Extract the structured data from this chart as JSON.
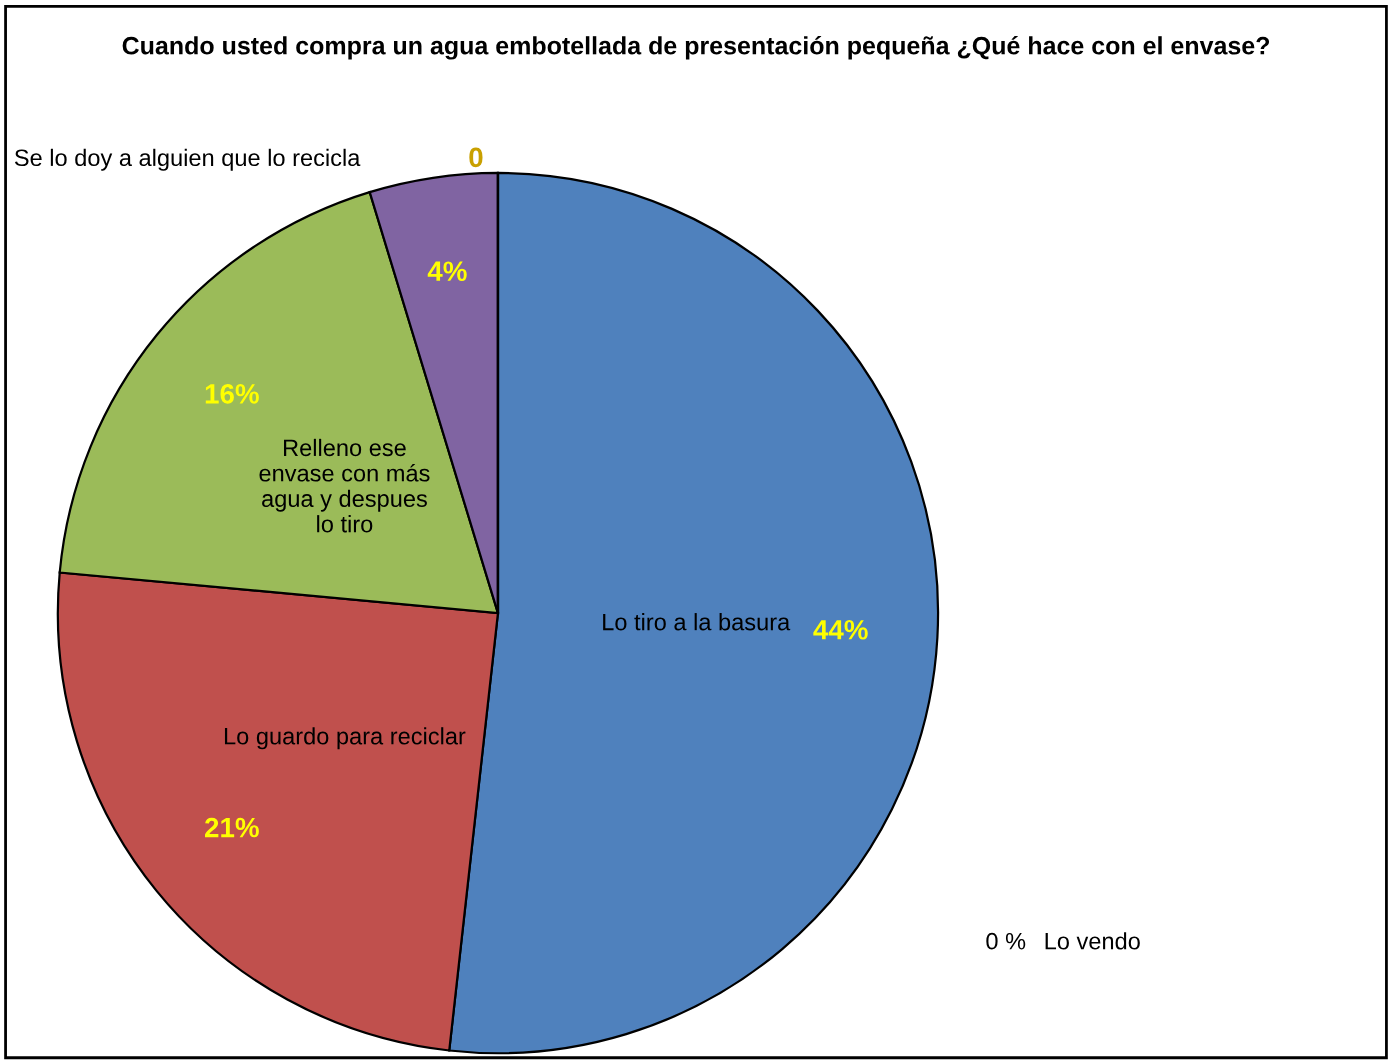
{
  "chart_data": {
    "type": "pie",
    "title": "Cuando usted compra un agua embotellada de presentación pequeña ¿Qué hace con el envase?",
    "categories": [
      "Lo tiro a la basura",
      "Lo guardo para reciclar",
      "Relleno ese\nenvase con más\nagua y despues\nlo tiro",
      null,
      "Se lo doy a alguien que lo recicla",
      "Lo vendo"
    ],
    "values": [
      44,
      21,
      16,
      4,
      0,
      0
    ],
    "value_labels": [
      "44%",
      "21%",
      "16%",
      "4%",
      "0",
      "0 %"
    ],
    "colors": [
      "#4f81bd",
      "#c0504d",
      "#9bbb59",
      "#8064a2",
      "#f79646",
      "#4bacc6"
    ],
    "legend": false
  }
}
